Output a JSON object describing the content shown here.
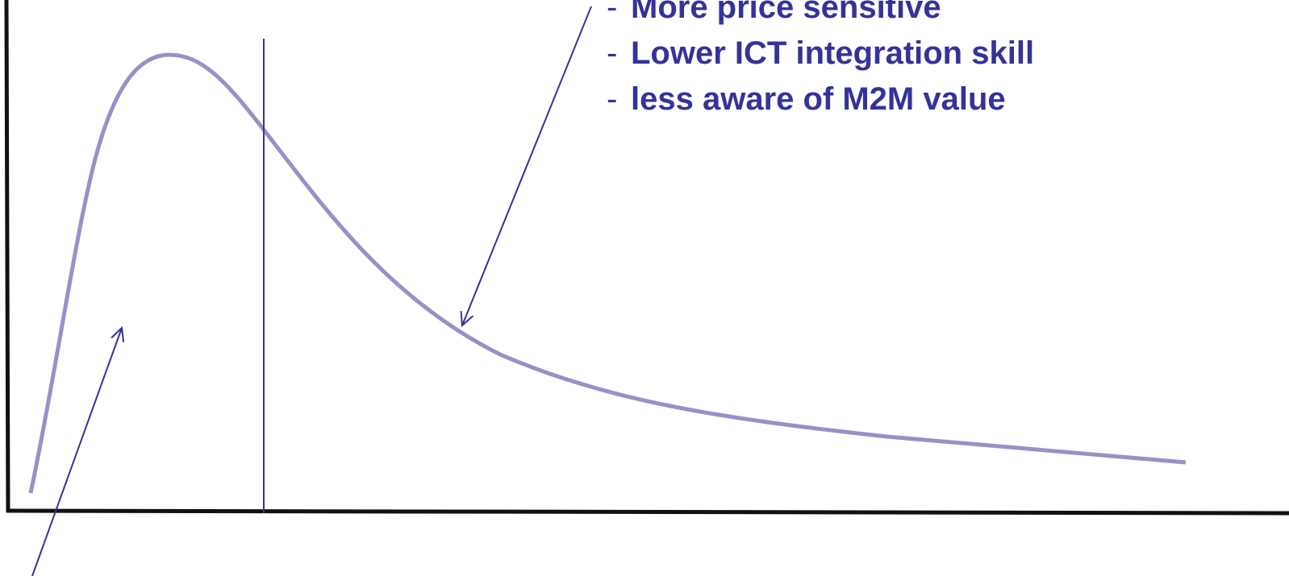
{
  "notes": [
    {
      "bullet": "-",
      "text": "More price sensitive"
    },
    {
      "bullet": "-",
      "text": "Lower ICT integration skill"
    },
    {
      "bullet": "-",
      "text": "less aware of M2M value"
    }
  ]
}
